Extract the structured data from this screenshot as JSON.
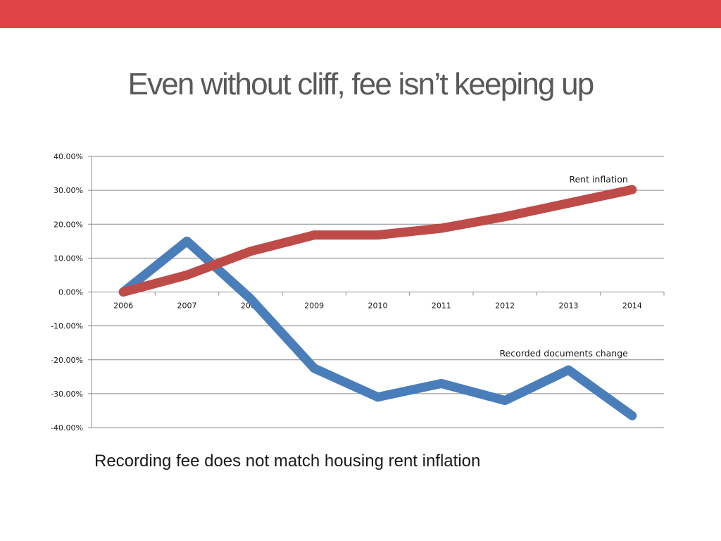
{
  "slide": {
    "title": "Even without cliff, fee isn’t keeping up",
    "caption": "Recording fee does not match housing rent inflation",
    "top_bar_color": "#E04444"
  },
  "chart_data": {
    "type": "line",
    "x": [
      "2006",
      "2007",
      "2008",
      "2009",
      "2010",
      "2011",
      "2012",
      "2013",
      "2014"
    ],
    "ylim": [
      -0.4,
      0.4
    ],
    "yticks": [
      0.4,
      0.3,
      0.2,
      0.1,
      0.0,
      -0.1,
      -0.2,
      -0.3,
      -0.4
    ],
    "ytick_labels": [
      "40.00%",
      "30.00%",
      "20.00%",
      "10.00%",
      "0.00%",
      "-10.00%",
      "-20.00%",
      "-30.00%",
      "-40.00%"
    ],
    "grid": true,
    "legend": "none",
    "series": [
      {
        "label": "Recorded documents change",
        "color": "#4A7EBB",
        "values": [
          0.0,
          0.15,
          -0.02,
          -0.225,
          -0.31,
          -0.27,
          -0.32,
          -0.23,
          -0.365
        ]
      },
      {
        "label": "Rent inflation",
        "color": "#BE4B48",
        "values": [
          0.0,
          0.05,
          0.12,
          0.168,
          0.168,
          0.188,
          0.222,
          0.262,
          0.302
        ]
      }
    ],
    "annotations": [
      {
        "text": "Rent inflation",
        "series": 1
      },
      {
        "text": "Recorded documents change",
        "series": 0
      }
    ]
  }
}
